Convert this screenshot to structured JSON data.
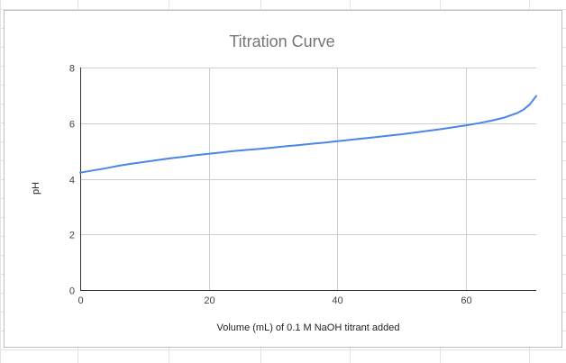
{
  "chart_data": {
    "type": "line",
    "title": "Titration Curve",
    "xlabel": "Volume (mL) of 0.1 M NaOH titrant added",
    "ylabel": "pH",
    "xlim": [
      0,
      71
    ],
    "ylim": [
      0,
      8
    ],
    "x_ticks": [
      0,
      20,
      40,
      60
    ],
    "y_ticks": [
      0,
      2,
      4,
      6,
      8
    ],
    "grid": true,
    "legend": "none",
    "series": [
      {
        "color": "#4a86e8",
        "points": [
          [
            0,
            4.22
          ],
          [
            2,
            4.3
          ],
          [
            4,
            4.38
          ],
          [
            6,
            4.47
          ],
          [
            8,
            4.54
          ],
          [
            10,
            4.61
          ],
          [
            12,
            4.67
          ],
          [
            14,
            4.74
          ],
          [
            16,
            4.79
          ],
          [
            18,
            4.85
          ],
          [
            20,
            4.9
          ],
          [
            22,
            4.95
          ],
          [
            24,
            5.0
          ],
          [
            26,
            5.04
          ],
          [
            28,
            5.08
          ],
          [
            30,
            5.12
          ],
          [
            32,
            5.17
          ],
          [
            34,
            5.21
          ],
          [
            36,
            5.26
          ],
          [
            38,
            5.3
          ],
          [
            40,
            5.35
          ],
          [
            42,
            5.4
          ],
          [
            44,
            5.45
          ],
          [
            46,
            5.5
          ],
          [
            48,
            5.55
          ],
          [
            50,
            5.6
          ],
          [
            52,
            5.66
          ],
          [
            54,
            5.72
          ],
          [
            56,
            5.78
          ],
          [
            58,
            5.85
          ],
          [
            60,
            5.92
          ],
          [
            62,
            6.0
          ],
          [
            64,
            6.09
          ],
          [
            66,
            6.2
          ],
          [
            68,
            6.36
          ],
          [
            69,
            6.48
          ],
          [
            70,
            6.68
          ],
          [
            71,
            6.98
          ]
        ]
      }
    ]
  }
}
